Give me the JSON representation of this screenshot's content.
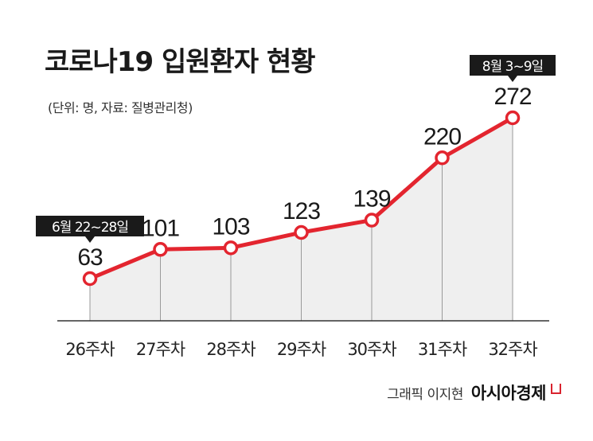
{
  "header": {
    "title": "코로나19 입원환자 현황",
    "subtitle": "(단위: 명, 자료: 질병관리청)"
  },
  "chart_data": {
    "type": "line",
    "title": "코로나19 입원환자 현황",
    "unit": "명",
    "source": "질병관리청",
    "categories": [
      "26주차",
      "27주차",
      "28주차",
      "29주차",
      "30주차",
      "31주차",
      "32주차"
    ],
    "series": [
      {
        "name": "입원환자",
        "values": [
          63,
          101,
          103,
          123,
          139,
          220,
          272
        ]
      }
    ],
    "annotations": [
      {
        "category": "26주차",
        "text": "6월 22~28일"
      },
      {
        "category": "32주차",
        "text": "8월 3~9일"
      }
    ],
    "ylim": [
      0,
      300
    ],
    "grid": false,
    "colors": {
      "line": "#e3252f",
      "area": "#efefef",
      "callout": "#1a1a1a"
    }
  },
  "footer": {
    "credit": "그래픽 이지현",
    "brand": "아시아경제"
  }
}
